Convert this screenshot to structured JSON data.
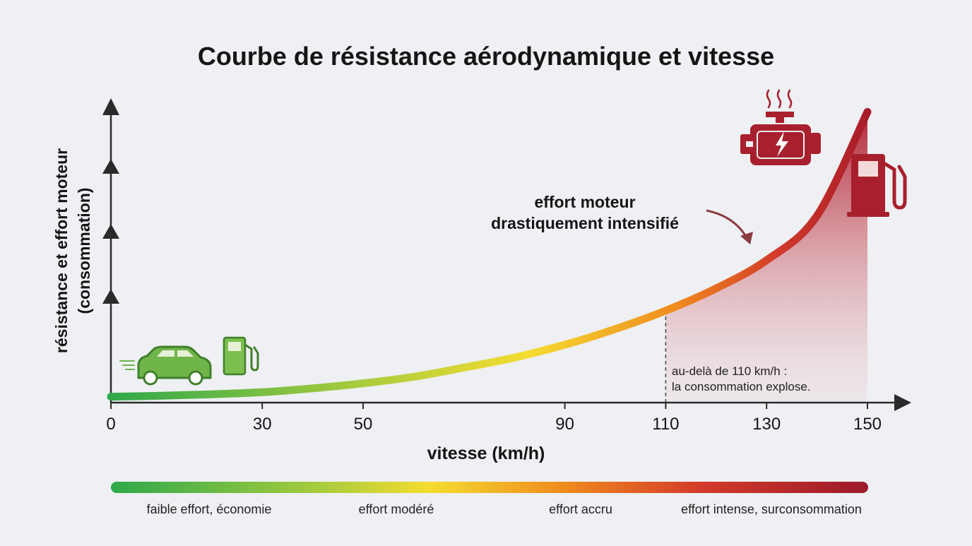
{
  "chart_data": {
    "type": "area",
    "title": "Courbe de résistance aérodynamique et vitesse",
    "xlabel": "vitesse (km/h)",
    "ylabel_line1": "résistance et effort moteur",
    "ylabel_line2": "(consommation)",
    "xlim": [
      0,
      150
    ],
    "ylim": [
      0,
      100
    ],
    "x_ticks": [
      0,
      30,
      50,
      90,
      110,
      130,
      150
    ],
    "x": [
      0,
      10,
      20,
      30,
      40,
      50,
      60,
      70,
      80,
      90,
      100,
      110,
      120,
      130,
      140,
      150
    ],
    "y": [
      2,
      2.3,
      2.8,
      3.5,
      4.8,
      6.5,
      8.7,
      11.8,
      15.2,
      19.5,
      24.8,
      31,
      38.5,
      48,
      63,
      98
    ],
    "highlight_from_x": 110,
    "annotation_threshold": {
      "line1": "au-delà de 110 km/h :",
      "line2": "la consommation explose."
    },
    "annotation_effort": {
      "line1": "effort moteur",
      "line2": "drastiquement intensifié"
    },
    "legend": [
      "faible effort, économie",
      "effort modéré",
      "effort accru",
      "effort intense, surconsommation"
    ],
    "grid": false,
    "colors": {
      "green": "#2ea84a",
      "lime": "#a9cc3e",
      "yellow": "#f5dc30",
      "orange": "#ef8a1e",
      "red": "#c7262b",
      "dark_red": "#9c1a2a",
      "car_green": "#6fb54a",
      "engine_red": "#a8202d"
    },
    "icons": [
      "car-icon",
      "fuel-pump-green-icon",
      "engine-icon",
      "fuel-pump-red-icon",
      "heat-waves-icon",
      "lightning-icon",
      "speed-lines-icon"
    ]
  }
}
